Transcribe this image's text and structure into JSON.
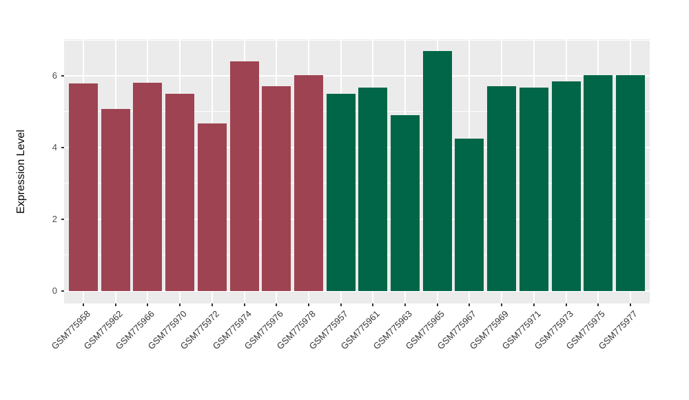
{
  "chart_data": {
    "type": "bar",
    "title": "",
    "xlabel": "",
    "ylabel": "Expression Level",
    "ylim": [
      0,
      7
    ],
    "yticks": [
      0,
      2,
      4,
      6
    ],
    "yticks_minor": [
      1,
      3,
      5,
      7
    ],
    "grid": true,
    "legend_position": "none",
    "panel_bg": "#EBEBEB",
    "grid_color": "#FFFFFF",
    "categories": [
      "GSM775958",
      "GSM775962",
      "GSM775966",
      "GSM775970",
      "GSM775972",
      "GSM775974",
      "GSM775976",
      "GSM775978",
      "GSM775957",
      "GSM775961",
      "GSM775963",
      "GSM775965",
      "GSM775967",
      "GSM775969",
      "GSM775971",
      "GSM775973",
      "GSM775975",
      "GSM775977"
    ],
    "values": [
      5.79,
      5.07,
      5.81,
      5.5,
      4.67,
      6.41,
      5.71,
      6.02,
      5.5,
      5.68,
      4.91,
      6.7,
      4.25,
      5.71,
      5.67,
      5.84,
      6.02,
      6.02
    ],
    "groups": [
      "group1",
      "group1",
      "group1",
      "group1",
      "group1",
      "group1",
      "group1",
      "group1",
      "group2",
      "group2",
      "group2",
      "group2",
      "group2",
      "group2",
      "group2",
      "group2",
      "group2",
      "group2"
    ],
    "group_colors": {
      "group1": "#9E4352",
      "group2": "#006647"
    }
  }
}
